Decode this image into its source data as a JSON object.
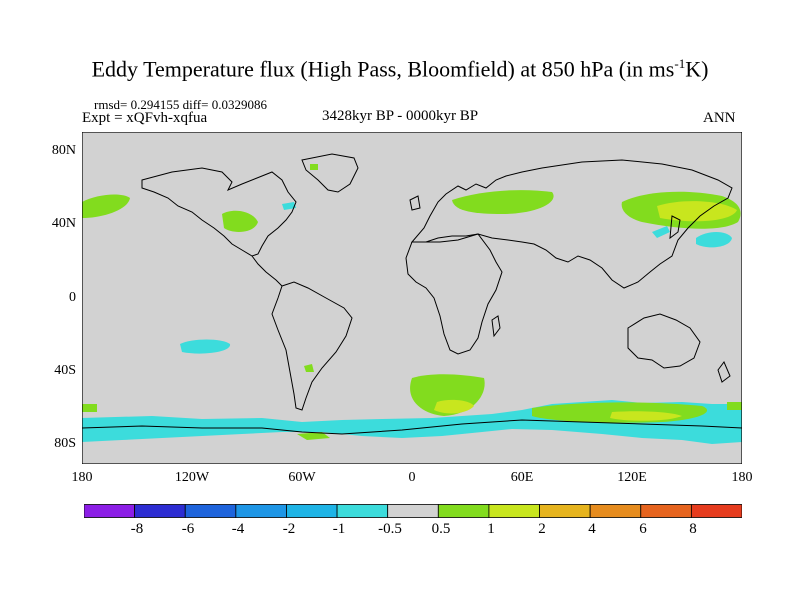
{
  "title_main": "Eddy Temperature flux (High Pass, Bloomfield) at 850 hPa (in ms",
  "title_sup": "-1",
  "title_end": "K)",
  "stats": "rmsd= 0.294155 diff= 0.0329086",
  "experiment": "Expt = xQFvh-xqfua",
  "period": "3428kyr BP - 0000kyr BP",
  "season": "ANN",
  "y_axis_labels": [
    "80N",
    "40N",
    "0",
    "40S",
    "80S"
  ],
  "x_axis_labels": [
    "180",
    "120W",
    "60W",
    "0",
    "60E",
    "120E",
    "180"
  ],
  "colorbar": {
    "colors": [
      "#8c1ee6",
      "#2d2dd2",
      "#1e64dc",
      "#1e96e6",
      "#1eb4e6",
      "#3cdcdc",
      "#d2d2d2",
      "#82dc1e",
      "#c8e61e",
      "#e6b41e",
      "#e68c1e",
      "#e6641e",
      "#e63c1e"
    ],
    "labels": [
      "-8",
      "-6",
      "-4",
      "-2",
      "-1",
      "-0.5",
      "0.5",
      "1",
      "2",
      "4",
      "6",
      "8"
    ]
  },
  "colors": {
    "land_background": "#d2d2d2",
    "coast": "#000000",
    "negative_light": "#3cdcdc",
    "positive_light": "#82dc1e",
    "positive_mid": "#c8e61e"
  }
}
